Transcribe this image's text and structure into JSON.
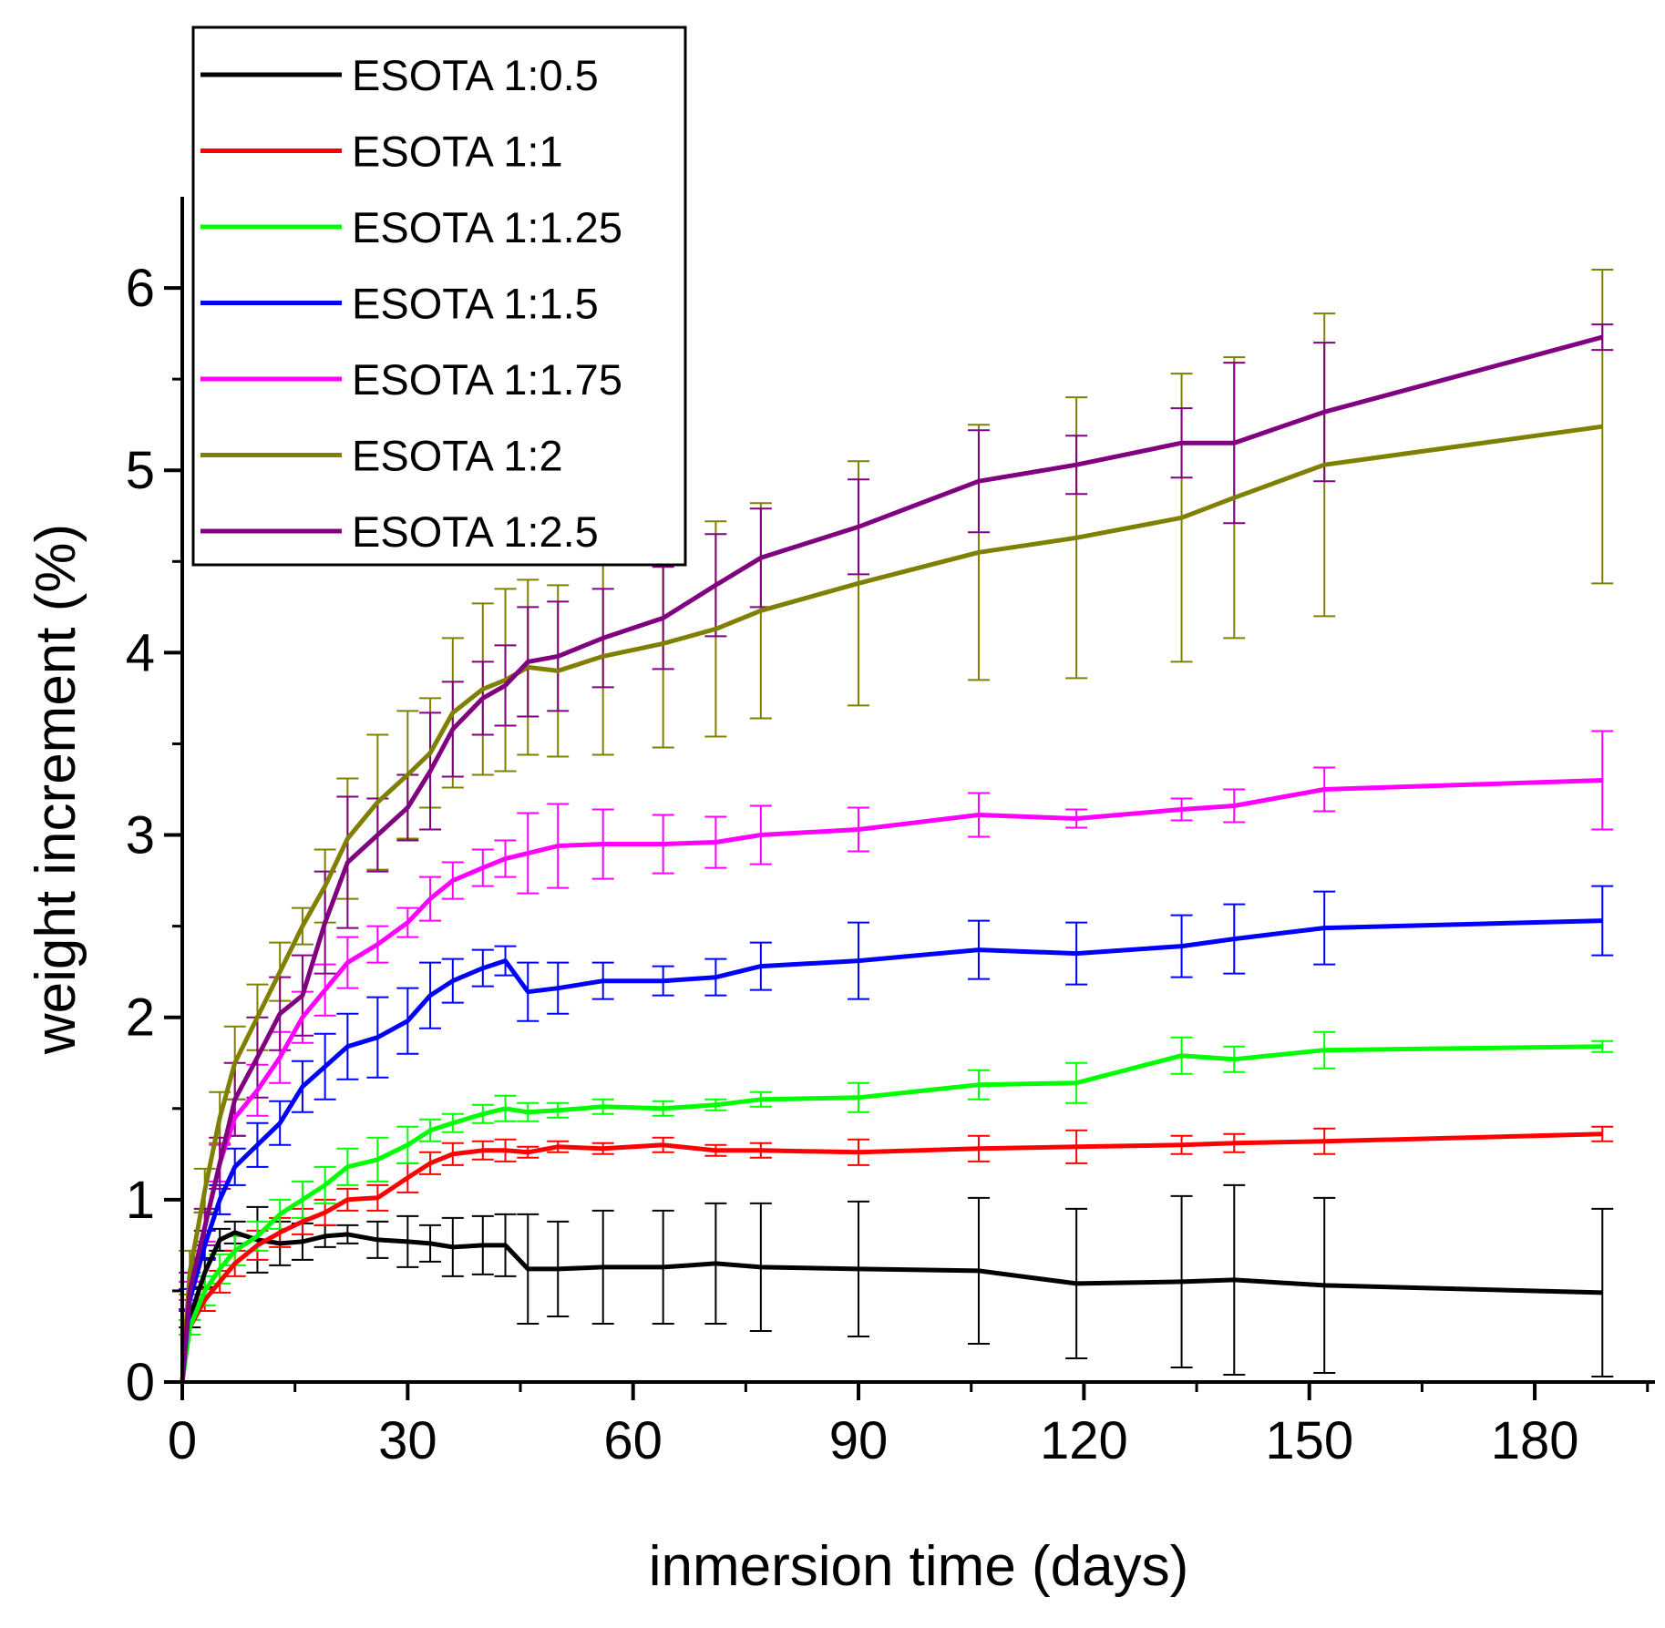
{
  "chart_data": {
    "type": "line",
    "title": "",
    "xlabel": "inmersion time (days)",
    "ylabel": "weight increment (%)",
    "xlim": [
      0,
      196
    ],
    "ylim": [
      0,
      6.5
    ],
    "xticks": [
      0,
      30,
      60,
      90,
      120,
      150,
      180
    ],
    "xtick_labels": [
      "0",
      "30",
      "60",
      "90",
      "120",
      "150",
      "180"
    ],
    "yticks": [
      0,
      1,
      2,
      3,
      4,
      5,
      6
    ],
    "ytick_labels": [
      "0",
      "1",
      "2",
      "3",
      "4",
      "5",
      "6"
    ],
    "legend_position": "top-left",
    "grid": false,
    "series": [
      {
        "name": "ESOTA 1:0.5",
        "color": "#000000",
        "x": [
          0,
          1,
          3,
          5,
          7,
          10,
          13,
          16,
          19,
          22,
          26,
          30,
          33,
          36,
          40,
          43,
          46,
          50,
          56,
          64,
          71,
          77,
          90,
          106,
          119,
          133,
          140,
          152,
          189
        ],
        "y": [
          0,
          0.35,
          0.6,
          0.78,
          0.82,
          0.78,
          0.76,
          0.77,
          0.8,
          0.81,
          0.78,
          0.77,
          0.76,
          0.74,
          0.75,
          0.75,
          0.62,
          0.62,
          0.63,
          0.63,
          0.65,
          0.63,
          0.62,
          0.61,
          0.54,
          0.55,
          0.56,
          0.53,
          0.49
        ],
        "err": [
          0,
          0.05,
          0.08,
          0.06,
          0.06,
          0.18,
          0.12,
          0.1,
          0.06,
          0.05,
          0.1,
          0.14,
          0.1,
          0.16,
          0.16,
          0.17,
          0.3,
          0.26,
          0.31,
          0.31,
          0.33,
          0.35,
          0.37,
          0.4,
          0.41,
          0.47,
          0.52,
          0.48,
          0.46
        ]
      },
      {
        "name": "ESOTA 1:1",
        "color": "#ff0000",
        "x": [
          0,
          1,
          3,
          5,
          7,
          10,
          13,
          16,
          19,
          22,
          26,
          30,
          33,
          36,
          40,
          43,
          46,
          50,
          56,
          64,
          71,
          77,
          90,
          106,
          119,
          133,
          140,
          152,
          189
        ],
        "y": [
          0,
          0.3,
          0.45,
          0.55,
          0.65,
          0.75,
          0.82,
          0.88,
          0.93,
          1.0,
          1.01,
          1.12,
          1.2,
          1.25,
          1.27,
          1.27,
          1.26,
          1.29,
          1.28,
          1.3,
          1.27,
          1.27,
          1.26,
          1.28,
          1.29,
          1.3,
          1.31,
          1.32,
          1.36
        ],
        "err": [
          0,
          0.04,
          0.06,
          0.06,
          0.07,
          0.08,
          0.08,
          0.07,
          0.07,
          0.06,
          0.07,
          0.08,
          0.06,
          0.06,
          0.05,
          0.06,
          0.03,
          0.03,
          0.03,
          0.04,
          0.03,
          0.04,
          0.07,
          0.07,
          0.09,
          0.05,
          0.05,
          0.07,
          0.04
        ]
      },
      {
        "name": "ESOTA 1:1.25",
        "color": "#00ff00",
        "x": [
          0,
          1,
          3,
          5,
          7,
          10,
          13,
          16,
          19,
          22,
          26,
          30,
          33,
          36,
          40,
          43,
          46,
          50,
          56,
          64,
          71,
          77,
          90,
          106,
          119,
          133,
          140,
          152,
          189
        ],
        "y": [
          0,
          0.3,
          0.5,
          0.62,
          0.72,
          0.8,
          0.92,
          1.0,
          1.08,
          1.18,
          1.22,
          1.3,
          1.38,
          1.42,
          1.47,
          1.5,
          1.48,
          1.49,
          1.51,
          1.5,
          1.52,
          1.55,
          1.56,
          1.63,
          1.64,
          1.79,
          1.77,
          1.82,
          1.84
        ],
        "err": [
          0,
          0.04,
          0.08,
          0.08,
          0.08,
          0.08,
          0.08,
          0.1,
          0.1,
          0.1,
          0.12,
          0.1,
          0.06,
          0.05,
          0.05,
          0.07,
          0.05,
          0.04,
          0.04,
          0.04,
          0.03,
          0.04,
          0.08,
          0.08,
          0.11,
          0.1,
          0.07,
          0.1,
          0.03
        ]
      },
      {
        "name": "ESOTA 1:1.5",
        "color": "#0000ff",
        "x": [
          0,
          1,
          3,
          5,
          7,
          10,
          13,
          16,
          19,
          22,
          26,
          30,
          33,
          36,
          40,
          43,
          46,
          50,
          56,
          64,
          71,
          77,
          90,
          106,
          119,
          133,
          140,
          152,
          189
        ],
        "y": [
          0,
          0.45,
          0.75,
          1.0,
          1.18,
          1.3,
          1.42,
          1.62,
          1.73,
          1.84,
          1.89,
          1.98,
          2.12,
          2.2,
          2.27,
          2.31,
          2.14,
          2.16,
          2.2,
          2.2,
          2.22,
          2.28,
          2.31,
          2.37,
          2.35,
          2.39,
          2.43,
          2.49,
          2.53
        ],
        "err": [
          0,
          0.06,
          0.08,
          0.08,
          0.1,
          0.12,
          0.12,
          0.14,
          0.18,
          0.18,
          0.22,
          0.18,
          0.18,
          0.12,
          0.1,
          0.08,
          0.16,
          0.14,
          0.1,
          0.08,
          0.1,
          0.13,
          0.21,
          0.16,
          0.17,
          0.17,
          0.19,
          0.2,
          0.19
        ]
      },
      {
        "name": "ESOTA 1:1.75",
        "color": "#ff00ff",
        "x": [
          0,
          1,
          3,
          5,
          7,
          10,
          13,
          16,
          19,
          22,
          26,
          30,
          33,
          36,
          40,
          43,
          46,
          50,
          56,
          64,
          71,
          77,
          90,
          106,
          119,
          133,
          140,
          152,
          189
        ],
        "y": [
          0,
          0.5,
          0.85,
          1.2,
          1.45,
          1.6,
          1.78,
          2.0,
          2.15,
          2.3,
          2.4,
          2.52,
          2.65,
          2.75,
          2.82,
          2.87,
          2.9,
          2.94,
          2.95,
          2.95,
          2.96,
          3.0,
          3.03,
          3.11,
          3.09,
          3.14,
          3.16,
          3.25,
          3.3
        ],
        "err": [
          0,
          0.05,
          0.08,
          0.1,
          0.1,
          0.14,
          0.14,
          0.14,
          0.14,
          0.14,
          0.1,
          0.08,
          0.12,
          0.1,
          0.1,
          0.1,
          0.22,
          0.23,
          0.19,
          0.16,
          0.14,
          0.16,
          0.12,
          0.12,
          0.05,
          0.06,
          0.09,
          0.12,
          0.27
        ]
      },
      {
        "name": "ESOTA 1:2",
        "color": "#808000",
        "x": [
          0,
          1,
          3,
          5,
          7,
          10,
          13,
          16,
          19,
          22,
          26,
          30,
          33,
          36,
          40,
          43,
          46,
          50,
          56,
          64,
          71,
          77,
          90,
          106,
          119,
          133,
          140,
          152,
          189
        ],
        "y": [
          0,
          0.6,
          1.05,
          1.45,
          1.75,
          2.0,
          2.25,
          2.5,
          2.72,
          2.98,
          3.18,
          3.33,
          3.45,
          3.67,
          3.8,
          3.85,
          3.92,
          3.9,
          3.98,
          4.05,
          4.13,
          4.23,
          4.38,
          4.55,
          4.63,
          4.74,
          4.85,
          5.03,
          5.24
        ],
        "err": [
          0,
          0.12,
          0.12,
          0.14,
          0.2,
          0.18,
          0.16,
          0.1,
          0.2,
          0.33,
          0.37,
          0.35,
          0.3,
          0.41,
          0.47,
          0.5,
          0.48,
          0.47,
          0.54,
          0.57,
          0.59,
          0.59,
          0.67,
          0.7,
          0.77,
          0.79,
          0.77,
          0.83,
          0.86
        ]
      },
      {
        "name": "ESOTA 1:2.5",
        "color": "#800080",
        "x": [
          0,
          1,
          3,
          5,
          7,
          10,
          13,
          16,
          19,
          22,
          26,
          30,
          33,
          36,
          40,
          43,
          46,
          50,
          56,
          64,
          71,
          77,
          90,
          106,
          119,
          133,
          140,
          152,
          189
        ],
        "y": [
          0,
          0.5,
          0.85,
          1.2,
          1.55,
          1.78,
          2.02,
          2.12,
          2.52,
          2.85,
          3.0,
          3.15,
          3.35,
          3.58,
          3.75,
          3.82,
          3.95,
          3.98,
          4.08,
          4.19,
          4.37,
          4.52,
          4.69,
          4.94,
          5.03,
          5.15,
          5.15,
          5.32,
          5.73
        ],
        "err": [
          0,
          0.1,
          0.1,
          0.14,
          0.2,
          0.22,
          0.2,
          0.22,
          0.28,
          0.36,
          0.2,
          0.18,
          0.32,
          0.26,
          0.2,
          0.22,
          0.3,
          0.3,
          0.27,
          0.28,
          0.28,
          0.27,
          0.26,
          0.28,
          0.16,
          0.19,
          0.44,
          0.38,
          0.07
        ]
      }
    ]
  }
}
